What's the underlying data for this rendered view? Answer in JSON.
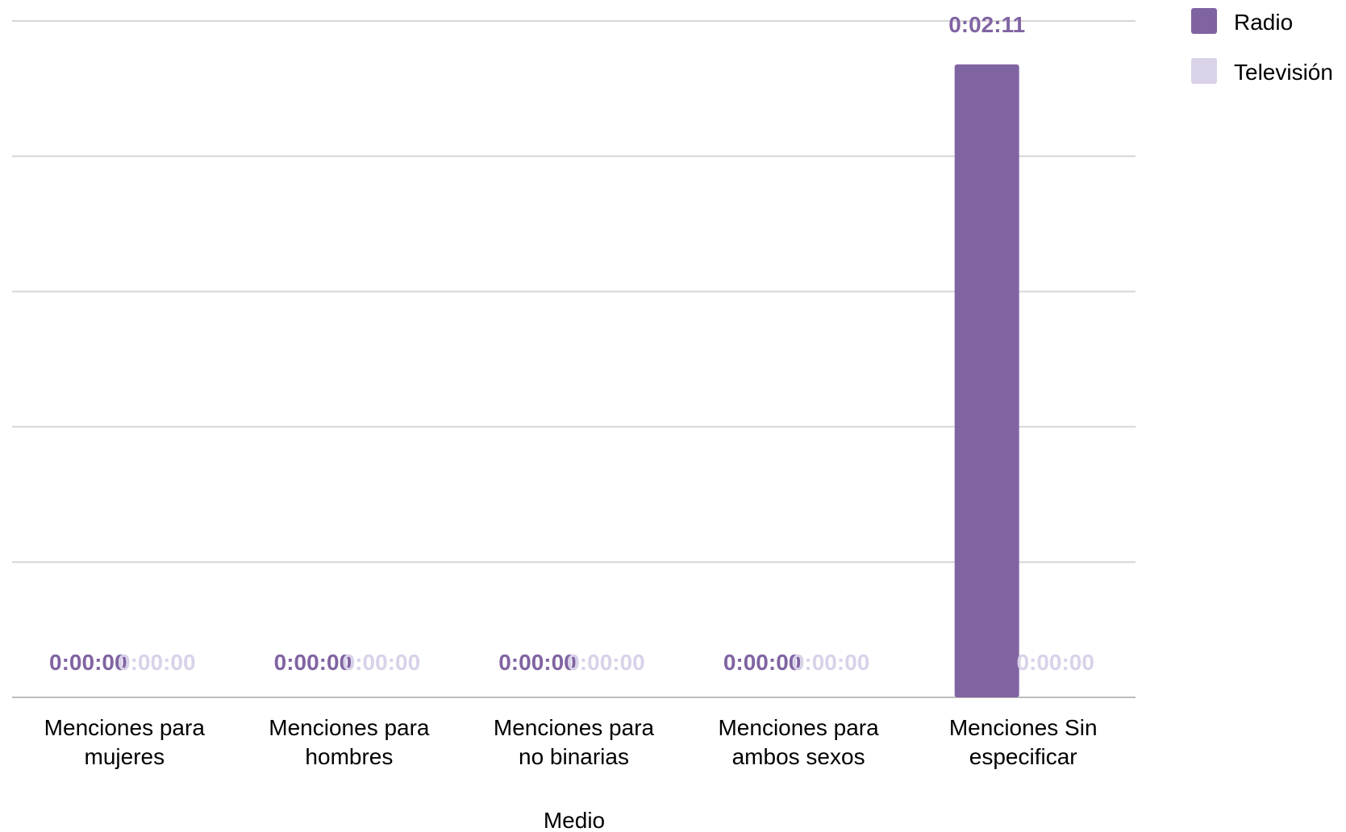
{
  "chart_data": {
    "type": "bar",
    "title": "",
    "xlabel": "Medio",
    "ylabel": "",
    "categories": [
      [
        "Menciones para",
        "mujeres"
      ],
      [
        "Menciones para",
        "hombres"
      ],
      [
        "Menciones para",
        "no binarias"
      ],
      [
        "Menciones para",
        "ambos sexos"
      ],
      [
        "Menciones Sin",
        "especificar"
      ]
    ],
    "series": [
      {
        "name": "Radio",
        "color": "#8064a2",
        "values": [
          0,
          0,
          0,
          0,
          131
        ],
        "labels": [
          "0:00:00",
          "0:00:00",
          "0:00:00",
          "0:00:00",
          "0:02:11"
        ]
      },
      {
        "name": "Televisión",
        "color": "#d9d2e9",
        "values": [
          0,
          0,
          0,
          0,
          0
        ],
        "labels": [
          "0:00:00",
          "0:00:00",
          "0:00:00",
          "0:00:00",
          "0:00:00"
        ]
      }
    ],
    "value_unit": "seconds",
    "ylim": [
      0,
      140
    ],
    "grid": true,
    "legend_position": "top-right"
  }
}
